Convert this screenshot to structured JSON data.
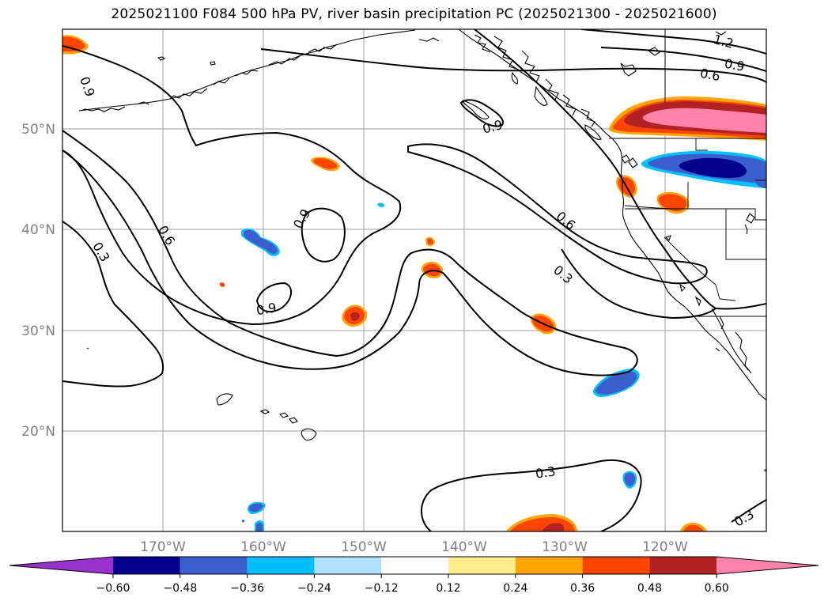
{
  "title": "2025021100 F084 500 hPa PV, river basin precipitation PC (2025021300 - 2025021600)",
  "map": {
    "lat_labels": [
      "50°N",
      "40°N",
      "30°N",
      "20°N"
    ],
    "lon_labels": [
      "170°W",
      "160°W",
      "150°W",
      "140°W",
      "130°W",
      "120°W"
    ],
    "contour_labels": {
      "c1": "0.9",
      "c2": "0.9",
      "c3": "0.6",
      "c4": "0.3",
      "c5": "0.9",
      "c6": "0.9",
      "c7": "0.6",
      "c8": "0.3",
      "c9": "1.2",
      "c10": "0.9",
      "c11": "0.6",
      "c12": "0.3",
      "c13": "0.3"
    }
  },
  "colorbar": {
    "ticks": [
      "−0.60",
      "−0.48",
      "−0.36",
      "−0.24",
      "−0.12",
      "0.12",
      "0.24",
      "0.36",
      "0.48",
      "0.60"
    ],
    "colors": [
      "#9932cc",
      "#00008b",
      "#3a5fcd",
      "#00bfff",
      "#b0e2ff",
      "#ffffff",
      "#ffec8b",
      "#ffa500",
      "#ff4500",
      "#b22222",
      "#ff82ab"
    ]
  }
}
